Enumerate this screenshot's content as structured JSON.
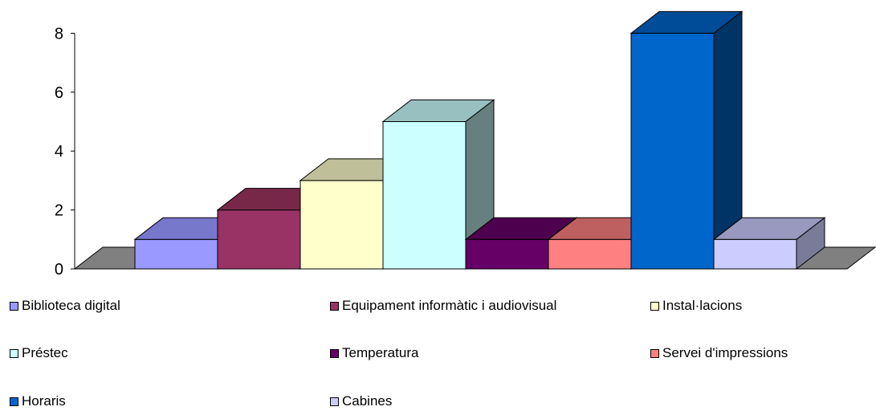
{
  "chart_data": {
    "type": "bar",
    "style": "3d-columns",
    "categories": [
      "Biblioteca digital",
      "Equipament informàtic i audiovisual",
      "Instal·lacions",
      "Préstec",
      "Temperatura",
      "Servei d'impressions",
      "Horaris",
      "Cabines"
    ],
    "values": [
      1,
      2,
      3,
      5,
      1,
      1,
      8,
      1
    ],
    "colors": [
      "#9999FF",
      "#993366",
      "#FFFFCC",
      "#CCFFFF",
      "#660066",
      "#FF8080",
      "#0066CC",
      "#CCCCFF"
    ],
    "top_colors": [
      "#7777CC",
      "#772849",
      "#BFBF99",
      "#99C0C0",
      "#4D004D",
      "#BF6060",
      "#004C99",
      "#9999BF"
    ],
    "side_colors": [
      "#666699",
      "#5C1F3D",
      "#99997A",
      "#668080",
      "#330033",
      "#995050",
      "#003366",
      "#7A7A99"
    ],
    "floor_color": "#808080",
    "ylim": [
      0,
      8
    ],
    "yticks": [
      0,
      2,
      4,
      6,
      8
    ],
    "ytick_labels": [
      "0",
      "2",
      "4",
      "6",
      "8"
    ],
    "legend": {
      "placement": "bottom",
      "columns": 3
    }
  }
}
